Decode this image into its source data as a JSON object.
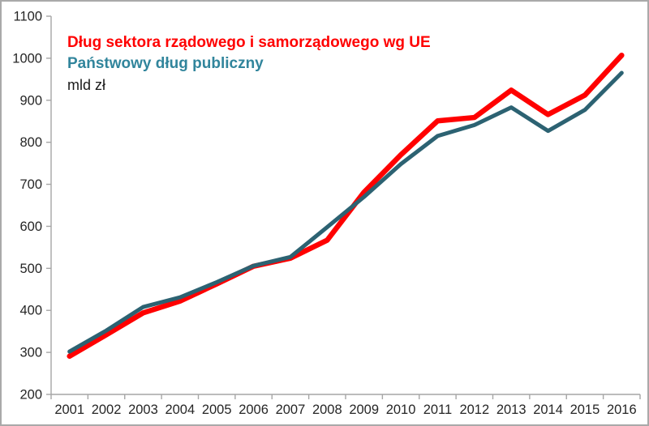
{
  "chart_data": {
    "type": "line",
    "x": [
      2001,
      2002,
      2003,
      2004,
      2005,
      2006,
      2007,
      2008,
      2009,
      2010,
      2011,
      2012,
      2013,
      2014,
      2015,
      2016
    ],
    "series": [
      {
        "name": "Dług sektora rządowego i samorządowego wg UE",
        "color": "#FF0000",
        "legend_color": "#FF0000",
        "line_width": 6.5,
        "values": [
          291,
          342,
          394,
          422,
          463,
          505,
          524,
          567,
          681,
          770,
          851,
          859,
          924,
          866,
          912,
          1007
        ]
      },
      {
        "name": "Państwowy dług publiczny",
        "color": "#2C6272",
        "legend_color": "#31859C",
        "line_width": 5,
        "values": [
          302,
          352,
          408,
          431,
          467,
          506,
          527,
          598,
          670,
          748,
          815,
          841,
          883,
          827,
          877,
          965
        ]
      }
    ],
    "unit_label": "mld zł",
    "unit_label_color": "#1A1A1A",
    "ylim": [
      200,
      1100
    ],
    "ytick_step": 100,
    "grid": false,
    "legend_position": "top-left-inside",
    "axis_color": "#A6A6A6",
    "tick_label_color": "#262626"
  }
}
